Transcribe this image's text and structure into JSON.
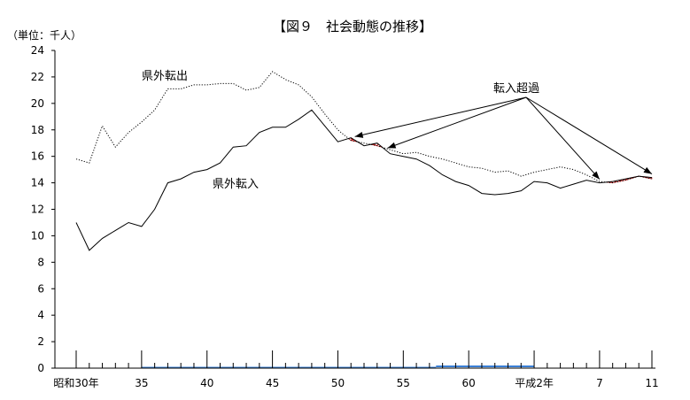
{
  "chart_data": {
    "type": "line",
    "title": "【図９　社会動態の推移】",
    "unit_label": "（単位：千人）",
    "ylim": [
      0,
      24
    ],
    "y_ticks": [
      0,
      2,
      4,
      6,
      8,
      10,
      12,
      14,
      16,
      18,
      20,
      22,
      24
    ],
    "x_tick_labels": [
      {
        "x": 0,
        "label": "昭和30年"
      },
      {
        "x": 5,
        "label": "35"
      },
      {
        "x": 10,
        "label": "40"
      },
      {
        "x": 15,
        "label": "45"
      },
      {
        "x": 20,
        "label": "50"
      },
      {
        "x": 25,
        "label": "55"
      },
      {
        "x": 30,
        "label": "60"
      },
      {
        "x": 35,
        "label": "平成2年"
      },
      {
        "x": 40,
        "label": "7"
      },
      {
        "x": 44,
        "label": "11"
      }
    ],
    "series": [
      {
        "name": "県外転出",
        "style": "dotted",
        "values": [
          15.8,
          15.5,
          18.3,
          16.7,
          17.8,
          18.6,
          19.5,
          21.1,
          21.1,
          21.4,
          21.4,
          21.5,
          21.5,
          21.0,
          21.2,
          22.4,
          21.8,
          21.4,
          20.5,
          19.2,
          18.0,
          17.2,
          17.0,
          16.8,
          16.5,
          16.2,
          16.3,
          16.0,
          15.8,
          15.5,
          15.2,
          15.1,
          14.8,
          14.9,
          14.5,
          14.8,
          15.0,
          15.2,
          15.0,
          14.6,
          14.1,
          14.0,
          14.2,
          14.5,
          14.3
        ]
      },
      {
        "name": "県外転入",
        "style": "solid",
        "values": [
          11.0,
          8.9,
          9.8,
          10.4,
          11.0,
          10.7,
          12.0,
          14.0,
          14.3,
          14.8,
          15.0,
          15.5,
          16.7,
          16.8,
          17.8,
          18.2,
          18.2,
          18.8,
          19.5,
          18.3,
          17.1,
          17.4,
          16.8,
          17.0,
          16.2,
          16.0,
          15.8,
          15.3,
          14.6,
          14.1,
          13.8,
          13.2,
          13.1,
          13.2,
          13.4,
          14.1,
          14.0,
          13.6,
          13.9,
          14.2,
          14.0,
          14.1,
          14.3,
          14.5,
          14.4
        ]
      }
    ],
    "annotation": {
      "label": "転入超過",
      "target_years": [
        21.3,
        23.8,
        40.0,
        44.0
      ]
    },
    "colors": {
      "axis": "#000000",
      "excess_fill": "#cc0000",
      "baseline_accent": "#3a7fd6"
    }
  }
}
